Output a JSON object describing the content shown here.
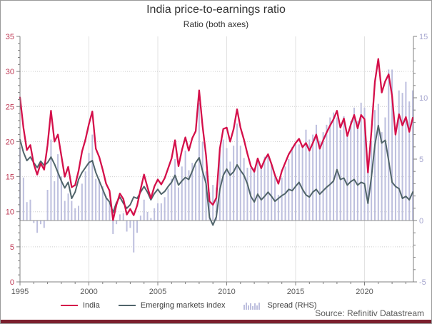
{
  "chart_data": {
    "type": "line+bar",
    "title": "India price-to-earnings ratio",
    "subtitle": "Ratio (both axes)",
    "x": {
      "start": 1995,
      "step": 0.25,
      "count": 115,
      "unit": "year"
    },
    "series": [
      {
        "name": "India",
        "type": "line",
        "axis": "left",
        "color": "#d40f4a",
        "values": [
          26.3,
          22.0,
          18.8,
          19.5,
          16.8,
          15.3,
          16.9,
          16.0,
          19.5,
          24.4,
          20.0,
          21.0,
          18.0,
          15.0,
          16.4,
          13.5,
          13.8,
          15.8,
          18.6,
          20.3,
          22.5,
          24.3,
          19.0,
          17.8,
          16.0,
          14.0,
          13.0,
          8.8,
          11.0,
          12.6,
          11.8,
          9.6,
          10.4,
          9.5,
          10.9,
          13.2,
          15.3,
          13.5,
          11.9,
          13.6,
          14.6,
          13.9,
          14.8,
          16.2,
          17.6,
          20.2,
          16.5,
          18.8,
          20.6,
          18.7,
          20.5,
          21.5,
          27.3,
          22.2,
          18.0,
          11.5,
          11.0,
          12.0,
          19.0,
          21.8,
          22.0,
          20.0,
          21.8,
          24.6,
          22.0,
          20.3,
          18.3,
          16.5,
          15.7,
          17.6,
          16.2,
          17.4,
          18.2,
          16.8,
          15.2,
          14.0,
          15.8,
          17.0,
          18.2,
          19.0,
          19.8,
          20.4,
          19.2,
          19.8,
          18.7,
          19.8,
          21.0,
          19.0,
          20.2,
          21.3,
          22.3,
          23.2,
          24.4,
          22.0,
          23.3,
          20.8,
          22.4,
          23.8,
          21.9,
          23.8,
          23.2,
          15.6,
          21.5,
          28.5,
          31.8,
          27.0,
          28.6,
          29.6,
          26.5,
          21.0,
          23.9,
          22.3,
          23.5,
          21.4,
          23.4
        ]
      },
      {
        "name": "Emerging markets index",
        "type": "line",
        "axis": "left",
        "color": "#50646a",
        "values": [
          20.3,
          18.5,
          17.3,
          17.8,
          17.0,
          16.3,
          17.2,
          16.6,
          17.0,
          17.8,
          16.8,
          15.6,
          14.4,
          13.4,
          14.2,
          11.9,
          12.8,
          14.6,
          15.6,
          16.3,
          17.0,
          17.3,
          15.6,
          14.4,
          13.2,
          12.0,
          11.4,
          9.9,
          11.3,
          12.1,
          11.2,
          10.5,
          11.0,
          12.1,
          11.9,
          12.8,
          13.6,
          12.8,
          11.7,
          12.6,
          13.2,
          12.5,
          12.9,
          13.6,
          14.2,
          15.2,
          13.8,
          14.4,
          14.9,
          14.6,
          15.8,
          17.0,
          17.7,
          15.8,
          14.0,
          9.2,
          8.1,
          9.3,
          13.2,
          15.2,
          16.1,
          15.2,
          15.7,
          16.7,
          15.9,
          15.2,
          14.0,
          12.2,
          11.4,
          12.5,
          11.7,
          12.2,
          12.8,
          12.2,
          11.5,
          11.9,
          12.3,
          12.6,
          13.2,
          13.0,
          13.6,
          14.2,
          13.2,
          12.4,
          12.1,
          12.8,
          13.2,
          12.5,
          13.0,
          13.5,
          13.9,
          14.4,
          16.0,
          14.6,
          14.8,
          13.8,
          14.3,
          14.6,
          13.8,
          14.2,
          14.0,
          11.2,
          15.0,
          19.5,
          22.3,
          19.8,
          20.2,
          17.3,
          14.2,
          13.6,
          13.3,
          11.9,
          12.2,
          11.7,
          12.8
        ]
      },
      {
        "name": "Spread (RHS)",
        "type": "bar",
        "axis": "right",
        "color": "#bdbfde",
        "values": [
          6.0,
          3.5,
          1.5,
          1.7,
          -0.2,
          -1.0,
          -0.3,
          -0.6,
          2.5,
          6.6,
          3.2,
          5.4,
          3.6,
          1.6,
          2.2,
          1.6,
          1.0,
          1.2,
          3.0,
          4.0,
          5.5,
          7.0,
          3.4,
          3.4,
          2.8,
          2.0,
          1.6,
          -1.1,
          -0.3,
          0.5,
          0.6,
          -0.9,
          -0.6,
          -2.6,
          -1.0,
          0.4,
          1.7,
          0.7,
          0.2,
          1.0,
          1.4,
          1.4,
          1.9,
          2.6,
          3.4,
          5.0,
          2.7,
          4.4,
          5.7,
          4.1,
          4.7,
          4.5,
          9.6,
          6.4,
          4.0,
          2.3,
          2.9,
          2.7,
          5.8,
          6.6,
          5.9,
          4.8,
          6.1,
          7.9,
          6.1,
          5.1,
          4.3,
          4.3,
          4.3,
          5.1,
          4.5,
          5.2,
          5.4,
          4.6,
          3.7,
          2.1,
          3.5,
          4.4,
          5.0,
          6.0,
          6.2,
          6.2,
          6.0,
          7.4,
          6.6,
          7.0,
          7.8,
          6.5,
          7.2,
          7.8,
          8.4,
          8.8,
          8.4,
          7.4,
          8.5,
          7.0,
          8.1,
          9.2,
          8.1,
          9.6,
          9.2,
          4.4,
          6.5,
          9.0,
          9.5,
          7.2,
          8.4,
          12.3,
          12.3,
          7.4,
          10.6,
          10.4,
          11.3,
          9.7,
          10.6
        ]
      }
    ],
    "left_axis": {
      "min": 0,
      "max": 35,
      "ticks": [
        0,
        5,
        10,
        15,
        20,
        25,
        30,
        35
      ],
      "label_color": "#bf3a55"
    },
    "right_axis": {
      "min": -5,
      "max": 15,
      "ticks": [
        -5,
        0,
        5,
        10,
        15
      ],
      "label_color": "#a6a6cf",
      "zero_line": 0
    },
    "x_axis": {
      "min": 1995,
      "max": 2023.6,
      "ticks": [
        1995,
        2000,
        2005,
        2010,
        2015,
        2020
      ],
      "label_color": "#595959"
    },
    "grid": {
      "horizontal": "dotted",
      "vertical": "solid",
      "color": "#d9d9d9"
    },
    "legend_position": "bottom-left"
  },
  "legend": {
    "items": [
      {
        "label": "India"
      },
      {
        "label": "Emerging markets index"
      },
      {
        "label": "Spread (RHS)"
      }
    ]
  },
  "source_note": "Source: Refinitiv Datastream"
}
